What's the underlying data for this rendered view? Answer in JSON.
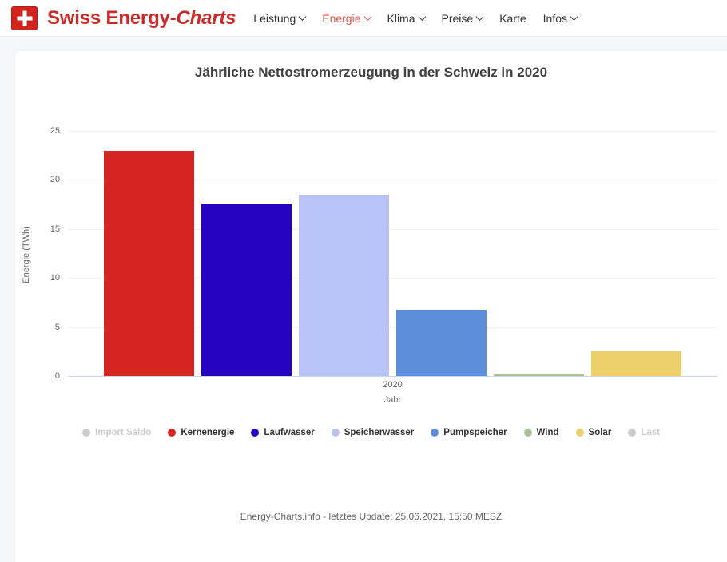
{
  "header": {
    "brand_bold": "Swiss Energy-",
    "brand_italic": "Charts",
    "nav": [
      {
        "label": "Leistung",
        "chevron": true,
        "active": false
      },
      {
        "label": "Energie",
        "chevron": true,
        "active": true
      },
      {
        "label": "Klima",
        "chevron": true,
        "active": false
      },
      {
        "label": "Preise",
        "chevron": true,
        "active": false
      },
      {
        "label": "Karte",
        "chevron": false,
        "active": false
      },
      {
        "label": "Infos",
        "chevron": true,
        "active": false
      }
    ]
  },
  "chart_data": {
    "type": "bar",
    "title": "Jährliche Nettostromerzeugung in der Schweiz in 2020",
    "xlabel": "Jahr",
    "ylabel": "Energie (TWh)",
    "categories": [
      "2020"
    ],
    "ylim": [
      0,
      25
    ],
    "yticks": [
      0,
      5,
      10,
      15,
      20,
      25
    ],
    "grid": true,
    "legend_position": "bottom",
    "series": [
      {
        "name": "Kernenergie",
        "value": 23.0,
        "color": "#d62423"
      },
      {
        "name": "Laufwasser",
        "value": 17.6,
        "color": "#2603c1"
      },
      {
        "name": "Speicherwasser",
        "value": 18.5,
        "color": "#b9c3f8"
      },
      {
        "name": "Pumpspeicher",
        "value": 6.8,
        "color": "#5c8eda"
      },
      {
        "name": "Wind",
        "value": 0.15,
        "color": "#a9c19a"
      },
      {
        "name": "Solar",
        "value": 2.5,
        "color": "#ecd06c"
      }
    ]
  },
  "legend": {
    "items": [
      {
        "label": "Import Saldo",
        "color": "#cccccc",
        "muted": true
      },
      {
        "label": "Kernenergie",
        "color": "#d62423",
        "muted": false
      },
      {
        "label": "Laufwasser",
        "color": "#2603c1",
        "muted": false
      },
      {
        "label": "Speicherwasser",
        "color": "#b9c3f8",
        "muted": false
      },
      {
        "label": "Pumpspeicher",
        "color": "#5c8eda",
        "muted": false
      },
      {
        "label": "Wind",
        "color": "#a9c19a",
        "muted": false
      },
      {
        "label": "Solar",
        "color": "#ecd06c",
        "muted": false
      },
      {
        "label": "Last",
        "color": "#cccccc",
        "muted": true
      }
    ]
  },
  "footer": {
    "credits": "Energy-Charts.info - letztes Update: 25.06.2021, 15:50 MESZ"
  },
  "colors": {
    "brand_red": "#cb2b28",
    "active_nav": "#e0524c",
    "page_bg": "#f6f7f9",
    "axis_line": "#ccd6eb"
  }
}
